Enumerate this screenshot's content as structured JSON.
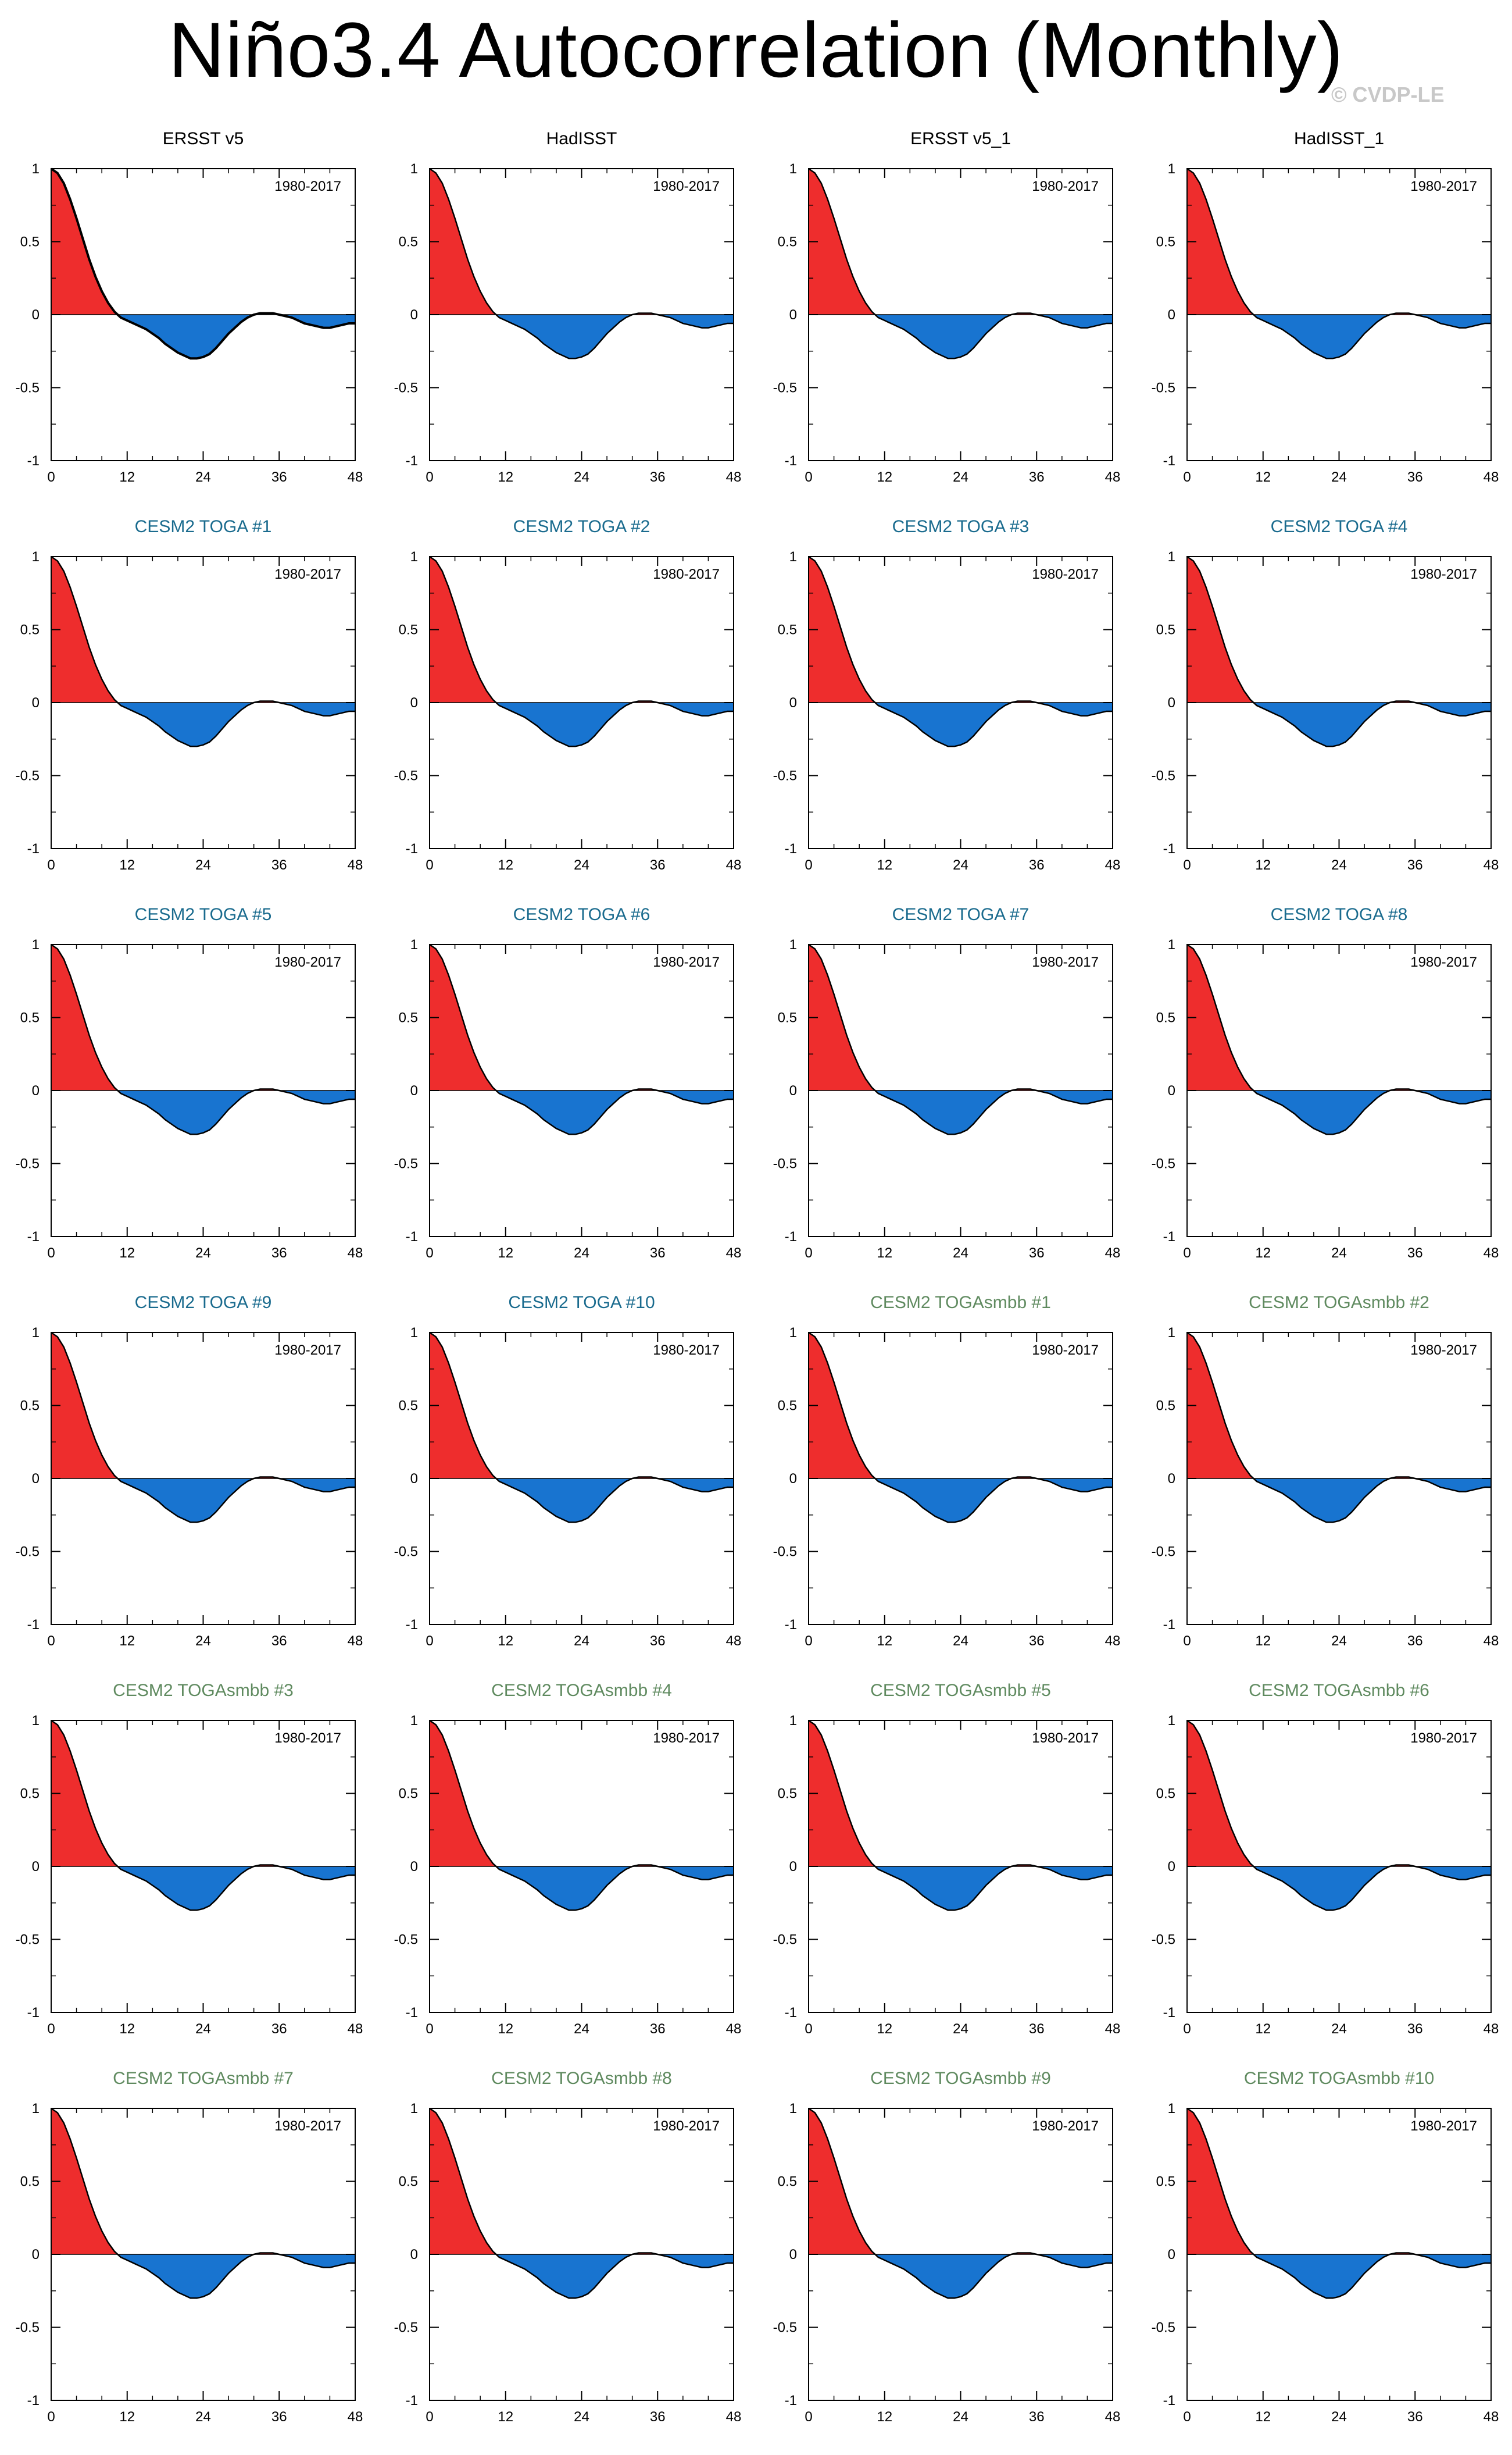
{
  "title": "Niño3.4 Autocorrelation (Monthly)",
  "watermark": "© CVDP-LE",
  "colors": {
    "positive_fill": "#ee2d2d",
    "negative_fill": "#1874d0",
    "obs_title": "#000000",
    "toga_title": "#1a6b8e",
    "togasmbb_title": "#5f8a5f"
  },
  "chart_data": {
    "type": "area",
    "layout": "6 rows x 4 columns of panels",
    "xlabel": "",
    "ylabel": "",
    "xlim": [
      0,
      48
    ],
    "ylim": [
      -1,
      1
    ],
    "x_ticks": [
      "0",
      "12",
      "24",
      "36",
      "48"
    ],
    "y_ticks": [
      "1",
      "0.5",
      "0",
      "-0.5",
      "-1"
    ],
    "annotation": "1980-2017",
    "grid": false,
    "fill_above_zero": "red",
    "fill_below_zero": "blue",
    "lags": [
      0,
      1,
      2,
      3,
      4,
      5,
      6,
      7,
      8,
      9,
      10,
      11,
      12,
      13,
      14,
      15,
      16,
      17,
      18,
      19,
      20,
      21,
      22,
      23,
      24,
      25,
      26,
      27,
      28,
      29,
      30,
      31,
      32,
      33,
      34,
      35,
      36,
      37,
      38,
      39,
      40,
      41,
      42,
      43,
      44,
      45,
      46,
      47,
      48
    ],
    "autocorrelation": [
      1.0,
      0.97,
      0.9,
      0.79,
      0.66,
      0.52,
      0.38,
      0.26,
      0.16,
      0.08,
      0.02,
      -0.02,
      -0.04,
      -0.06,
      -0.08,
      -0.1,
      -0.13,
      -0.16,
      -0.2,
      -0.23,
      -0.26,
      -0.28,
      -0.3,
      -0.3,
      -0.29,
      -0.27,
      -0.23,
      -0.18,
      -0.13,
      -0.09,
      -0.05,
      -0.02,
      0.0,
      0.01,
      0.01,
      0.01,
      0.0,
      -0.01,
      -0.02,
      -0.04,
      -0.06,
      -0.07,
      -0.08,
      -0.09,
      -0.09,
      -0.08,
      -0.07,
      -0.06,
      -0.06
    ],
    "panels": [
      {
        "title": "ERSST v5",
        "group": "obs"
      },
      {
        "title": "HadISST",
        "group": "obs"
      },
      {
        "title": "ERSST v5_1",
        "group": "obs"
      },
      {
        "title": "HadISST_1",
        "group": "obs"
      },
      {
        "title": "CESM2 TOGA #1",
        "group": "toga"
      },
      {
        "title": "CESM2 TOGA #2",
        "group": "toga"
      },
      {
        "title": "CESM2 TOGA #3",
        "group": "toga"
      },
      {
        "title": "CESM2 TOGA #4",
        "group": "toga"
      },
      {
        "title": "CESM2 TOGA #5",
        "group": "toga"
      },
      {
        "title": "CESM2 TOGA #6",
        "group": "toga"
      },
      {
        "title": "CESM2 TOGA #7",
        "group": "toga"
      },
      {
        "title": "CESM2 TOGA #8",
        "group": "toga"
      },
      {
        "title": "CESM2 TOGA #9",
        "group": "toga"
      },
      {
        "title": "CESM2 TOGA #10",
        "group": "toga"
      },
      {
        "title": "CESM2 TOGAsmbb #1",
        "group": "togasmbb"
      },
      {
        "title": "CESM2 TOGAsmbb #2",
        "group": "togasmbb"
      },
      {
        "title": "CESM2 TOGAsmbb #3",
        "group": "togasmbb"
      },
      {
        "title": "CESM2 TOGAsmbb #4",
        "group": "togasmbb"
      },
      {
        "title": "CESM2 TOGAsmbb #5",
        "group": "togasmbb"
      },
      {
        "title": "CESM2 TOGAsmbb #6",
        "group": "togasmbb"
      },
      {
        "title": "CESM2 TOGAsmbb #7",
        "group": "togasmbb"
      },
      {
        "title": "CESM2 TOGAsmbb #8",
        "group": "togasmbb"
      },
      {
        "title": "CESM2 TOGAsmbb #9",
        "group": "togasmbb"
      },
      {
        "title": "CESM2 TOGAsmbb #10",
        "group": "togasmbb"
      }
    ]
  }
}
